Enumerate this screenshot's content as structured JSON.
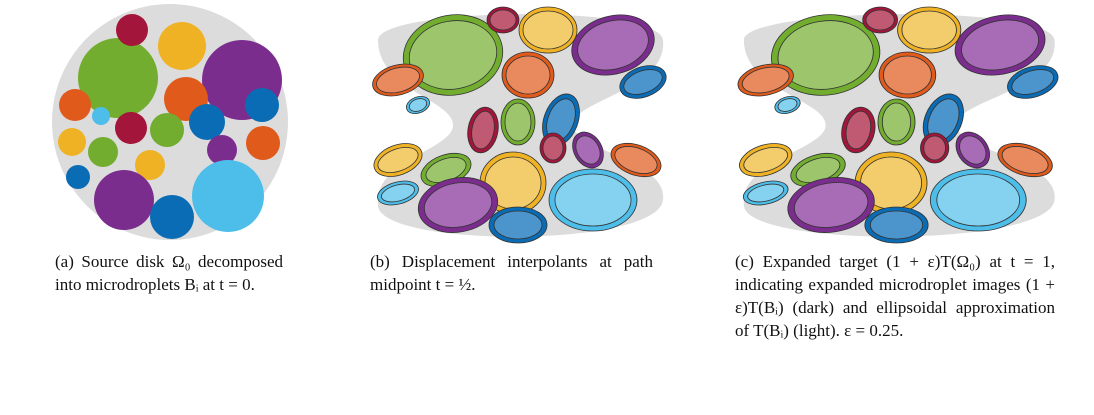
{
  "captions": [
    "(a) Source disk Ω₀ decomposed into microdroplets Bᵢ at t = 0.",
    "(b) Displacement interpolants at path midpoint t = ½.",
    "(c) Expanded target (1 + ε)T(Ω₀) at t = 1, indicating expanded microdroplet images (1 + ε)T(Bᵢ) (dark) and ellipsoidal approximation of T(Bᵢ) (light). ε = 0.25."
  ]
}
